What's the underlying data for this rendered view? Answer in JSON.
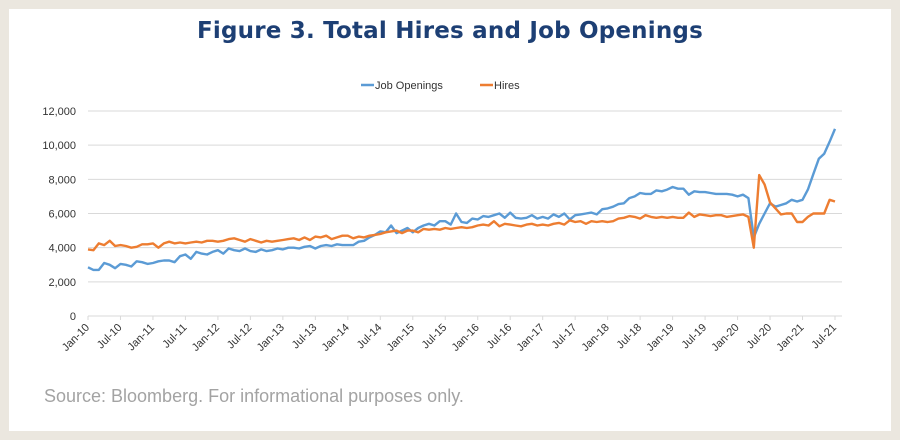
{
  "figure": {
    "title": "Figure 3. Total Hires and Job Openings",
    "source": "Source: Bloomberg. For informational purposes only."
  },
  "chart_data": {
    "type": "line",
    "title": "Figure 3. Total Hires and Job Openings",
    "xlabel": "",
    "ylabel": "",
    "x_start": "Jan-10",
    "x_end": "Jul-21",
    "frequency": "monthly",
    "x_tick_labels": [
      "Jan-10",
      "Jul-10",
      "Jan-11",
      "Jul-11",
      "Jan-12",
      "Jul-12",
      "Jan-13",
      "Jul-13",
      "Jan-14",
      "Jul-14",
      "Jan-15",
      "Jul-15",
      "Jan-16",
      "Jul-16",
      "Jan-17",
      "Jul-17",
      "Jan-18",
      "Jul-18",
      "Jan-19",
      "Jul-19",
      "Jan-20",
      "Jul-20",
      "Jan-21",
      "Jul-21"
    ],
    "y_tick_labels": [
      "0",
      "2,000",
      "4,000",
      "6,000",
      "8,000",
      "10,000",
      "12,000"
    ],
    "ylim": [
      0,
      12000
    ],
    "grid": "horizontal",
    "legend_position": "top",
    "series": [
      {
        "name": "Job Openings",
        "color": "#5b9bd5",
        "values": [
          2850,
          2700,
          2700,
          3100,
          3000,
          2800,
          3050,
          3000,
          2900,
          3200,
          3150,
          3050,
          3100,
          3200,
          3250,
          3250,
          3150,
          3500,
          3600,
          3350,
          3750,
          3650,
          3600,
          3750,
          3850,
          3650,
          3950,
          3850,
          3800,
          3950,
          3800,
          3750,
          3900,
          3800,
          3850,
          3950,
          3900,
          4000,
          4000,
          3950,
          4050,
          4100,
          3950,
          4100,
          4150,
          4100,
          4200,
          4150,
          4150,
          4150,
          4350,
          4400,
          4600,
          4750,
          4950,
          4900,
          5300,
          4850,
          5000,
          5150,
          4900,
          5150,
          5300,
          5400,
          5300,
          5550,
          5550,
          5350,
          6000,
          5500,
          5450,
          5700,
          5650,
          5850,
          5800,
          5900,
          6000,
          5750,
          6050,
          5750,
          5700,
          5750,
          5900,
          5700,
          5800,
          5700,
          5950,
          5800,
          6000,
          5650,
          5900,
          5950,
          6000,
          6050,
          5950,
          6250,
          6300,
          6400,
          6550,
          6600,
          6900,
          7000,
          7200,
          7150,
          7150,
          7350,
          7300,
          7400,
          7550,
          7450,
          7450,
          7100,
          7300,
          7250,
          7250,
          7200,
          7150,
          7150,
          7150,
          7100,
          7000,
          7100,
          6900,
          4600,
          5400,
          6000,
          6600,
          6400,
          6500,
          6600,
          6800,
          6700,
          6800,
          7400,
          8300,
          9200,
          9500,
          10200,
          10950
        ]
      },
      {
        "name": "Hires",
        "color": "#ed7d31",
        "values": [
          3900,
          3850,
          4250,
          4150,
          4400,
          4100,
          4150,
          4100,
          4000,
          4050,
          4200,
          4200,
          4250,
          4000,
          4250,
          4350,
          4250,
          4300,
          4250,
          4300,
          4350,
          4300,
          4400,
          4400,
          4350,
          4400,
          4500,
          4550,
          4450,
          4350,
          4500,
          4400,
          4300,
          4400,
          4350,
          4400,
          4450,
          4500,
          4550,
          4450,
          4600,
          4450,
          4650,
          4600,
          4700,
          4500,
          4600,
          4700,
          4700,
          4550,
          4650,
          4600,
          4700,
          4750,
          4800,
          4900,
          4950,
          5000,
          4850,
          5000,
          5000,
          4900,
          5100,
          5050,
          5100,
          5050,
          5150,
          5100,
          5150,
          5200,
          5150,
          5200,
          5300,
          5350,
          5300,
          5550,
          5250,
          5400,
          5350,
          5300,
          5250,
          5350,
          5400,
          5300,
          5350,
          5300,
          5400,
          5450,
          5350,
          5600,
          5500,
          5550,
          5400,
          5550,
          5500,
          5550,
          5500,
          5550,
          5700,
          5750,
          5850,
          5800,
          5700,
          5900,
          5800,
          5750,
          5800,
          5750,
          5800,
          5750,
          5750,
          6050,
          5800,
          5950,
          5900,
          5850,
          5900,
          5900,
          5800,
          5850,
          5900,
          5950,
          5800,
          4000,
          8250,
          7700,
          6650,
          6300,
          5950,
          6000,
          6000,
          5500,
          5500,
          5800,
          6000,
          6000,
          6000,
          6800,
          6700
        ]
      }
    ]
  }
}
